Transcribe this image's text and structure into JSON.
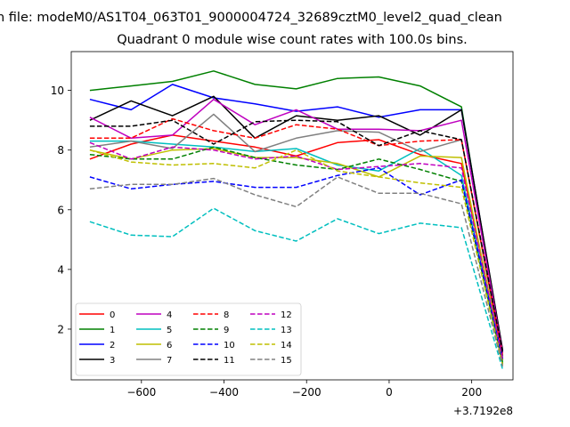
{
  "chart_data": {
    "type": "line",
    "suptitle": "n file: modeM0/AS1T04_063T01_9000004724_32689cztM0_level2_quad_clean",
    "title": "Quadrant 0 module wise count rates with 100.0s bins.",
    "xlabel": "",
    "ylabel": "",
    "x_offset_label": "+3.7192e8",
    "xlim": [
      -770,
      300
    ],
    "ylim": [
      0.3,
      11.3
    ],
    "xticks": [
      -600,
      -400,
      -200,
      0,
      200
    ],
    "xtick_labels": [
      "−600",
      "−400",
      "−200",
      "0",
      "200"
    ],
    "yticks": [
      2,
      4,
      6,
      8,
      10
    ],
    "ytick_labels": [
      "2",
      "4",
      "6",
      "8",
      "10"
    ],
    "grid": false,
    "legend_position": "lower-left",
    "legend_columns": 4,
    "x": [
      -725,
      -625,
      -525,
      -425,
      -325,
      -225,
      -125,
      -25,
      75,
      175,
      275
    ],
    "series": [
      {
        "name": "0",
        "color": "#ff0000",
        "dash": "solid",
        "values": [
          7.7,
          8.2,
          8.5,
          8.3,
          8.1,
          7.8,
          8.25,
          8.35,
          7.85,
          7.55,
          1.0
        ]
      },
      {
        "name": "1",
        "color": "#008000",
        "dash": "solid",
        "values": [
          10.0,
          10.15,
          10.3,
          10.65,
          10.2,
          10.05,
          10.4,
          10.45,
          10.15,
          9.45,
          1.1
        ]
      },
      {
        "name": "2",
        "color": "#0000ff",
        "dash": "solid",
        "values": [
          9.7,
          9.35,
          10.2,
          9.75,
          9.55,
          9.3,
          9.45,
          9.1,
          9.35,
          9.35,
          1.25
        ]
      },
      {
        "name": "3",
        "color": "#000000",
        "dash": "solid",
        "values": [
          9.0,
          9.65,
          9.15,
          9.8,
          8.4,
          9.15,
          9.0,
          9.15,
          8.5,
          9.35,
          1.3
        ]
      },
      {
        "name": "4",
        "color": "#bf00bf",
        "dash": "solid",
        "values": [
          9.1,
          8.4,
          8.5,
          9.7,
          8.85,
          9.35,
          8.7,
          8.7,
          8.65,
          9.0,
          1.2
        ]
      },
      {
        "name": "5",
        "color": "#00bfbf",
        "dash": "solid",
        "values": [
          8.3,
          8.3,
          8.2,
          8.1,
          7.95,
          8.05,
          7.5,
          7.3,
          8.05,
          7.15,
          0.9
        ]
      },
      {
        "name": "6",
        "color": "#bfbf00",
        "dash": "solid",
        "values": [
          8.0,
          7.7,
          8.0,
          8.05,
          7.75,
          7.75,
          7.55,
          7.1,
          7.8,
          7.75,
          0.95
        ]
      },
      {
        "name": "7",
        "color": "#808080",
        "dash": "solid",
        "values": [
          8.1,
          8.3,
          8.05,
          9.2,
          7.95,
          8.4,
          8.65,
          8.6,
          7.95,
          8.35,
          1.05
        ]
      },
      {
        "name": "8",
        "color": "#ff0000",
        "dash": "dashed",
        "values": [
          8.4,
          8.4,
          9.05,
          8.65,
          8.4,
          8.85,
          8.7,
          8.15,
          8.3,
          8.35,
          1.1
        ]
      },
      {
        "name": "9",
        "color": "#008000",
        "dash": "dashed",
        "values": [
          7.85,
          7.7,
          7.7,
          8.1,
          7.75,
          7.5,
          7.35,
          7.7,
          7.35,
          6.95,
          0.85
        ]
      },
      {
        "name": "10",
        "color": "#0000ff",
        "dash": "dashed",
        "values": [
          7.1,
          6.7,
          6.85,
          6.95,
          6.75,
          6.75,
          7.15,
          7.4,
          6.5,
          7.0,
          1.0
        ]
      },
      {
        "name": "11",
        "color": "#000000",
        "dash": "dashed",
        "values": [
          8.8,
          8.8,
          9.0,
          8.2,
          8.95,
          9.0,
          8.95,
          8.15,
          8.65,
          8.35,
          1.2
        ]
      },
      {
        "name": "12",
        "color": "#bf00bf",
        "dash": "dashed",
        "values": [
          8.25,
          7.7,
          8.1,
          8.0,
          7.7,
          7.8,
          7.35,
          7.45,
          7.55,
          7.4,
          1.0
        ]
      },
      {
        "name": "13",
        "color": "#00bfbf",
        "dash": "dashed",
        "values": [
          5.6,
          5.15,
          5.1,
          6.05,
          5.3,
          4.95,
          5.7,
          5.2,
          5.55,
          5.4,
          0.65
        ]
      },
      {
        "name": "14",
        "color": "#bfbf00",
        "dash": "dashed",
        "values": [
          8.0,
          7.6,
          7.5,
          7.55,
          7.4,
          8.0,
          7.3,
          7.1,
          6.9,
          6.75,
          0.8
        ]
      },
      {
        "name": "15",
        "color": "#808080",
        "dash": "dashed",
        "values": [
          6.7,
          6.85,
          6.85,
          7.05,
          6.5,
          6.1,
          7.1,
          6.55,
          6.55,
          6.2,
          0.75
        ]
      }
    ]
  }
}
